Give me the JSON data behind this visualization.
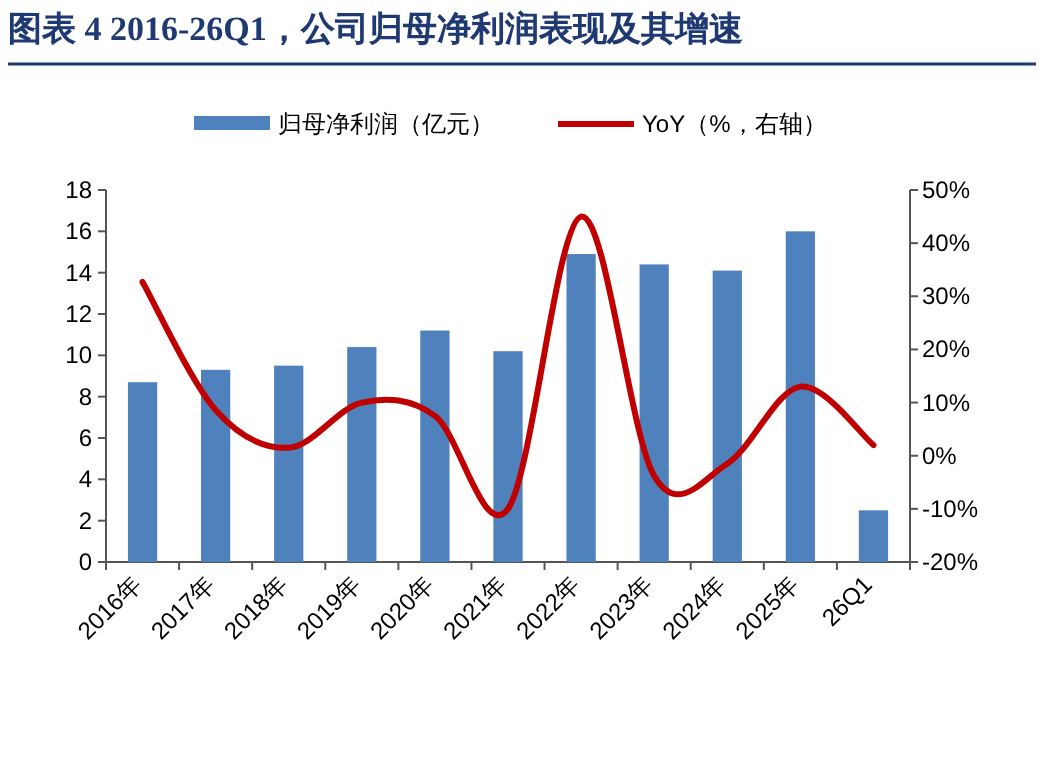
{
  "chart_data": {
    "type": "bar",
    "title": "图表 4   2016-26Q1，公司归母净利润表现及其增速",
    "categories": [
      "2016年",
      "2017年",
      "2018年",
      "2019年",
      "2020年",
      "2021年",
      "2022年",
      "2023年",
      "2024年",
      "2025年",
      "26Q1"
    ],
    "series": [
      {
        "name": "归母净利润（亿元）",
        "color": "#4f81bd",
        "values": [
          8.7,
          9.3,
          9.5,
          10.4,
          11.2,
          10.2,
          14.9,
          14.4,
          14.1,
          16.0,
          2.5
        ]
      },
      {
        "name": "YoY（%，右轴）",
        "type": "line",
        "axis": "y2",
        "color": "#c00000",
        "values": [
          32.7,
          8.6,
          1.5,
          10,
          7.5,
          -10,
          45,
          -3.8,
          -1.5,
          13,
          2
        ]
      }
    ],
    "ylim": [
      0,
      18
    ],
    "yticks": [
      0,
      2,
      4,
      6,
      8,
      10,
      12,
      14,
      16,
      18
    ],
    "y2lim": [
      -20,
      50
    ],
    "y2ticks": [
      {
        "value": -20,
        "label": "-20%"
      },
      {
        "value": -10,
        "label": "-10%"
      },
      {
        "value": 0,
        "label": "0%"
      },
      {
        "value": 10,
        "label": "10%"
      },
      {
        "value": 20,
        "label": "20%"
      },
      {
        "value": 30,
        "label": "30%"
      },
      {
        "value": 40,
        "label": "40%"
      },
      {
        "value": 50,
        "label": "50%"
      }
    ],
    "legend": "top",
    "grid": false
  }
}
